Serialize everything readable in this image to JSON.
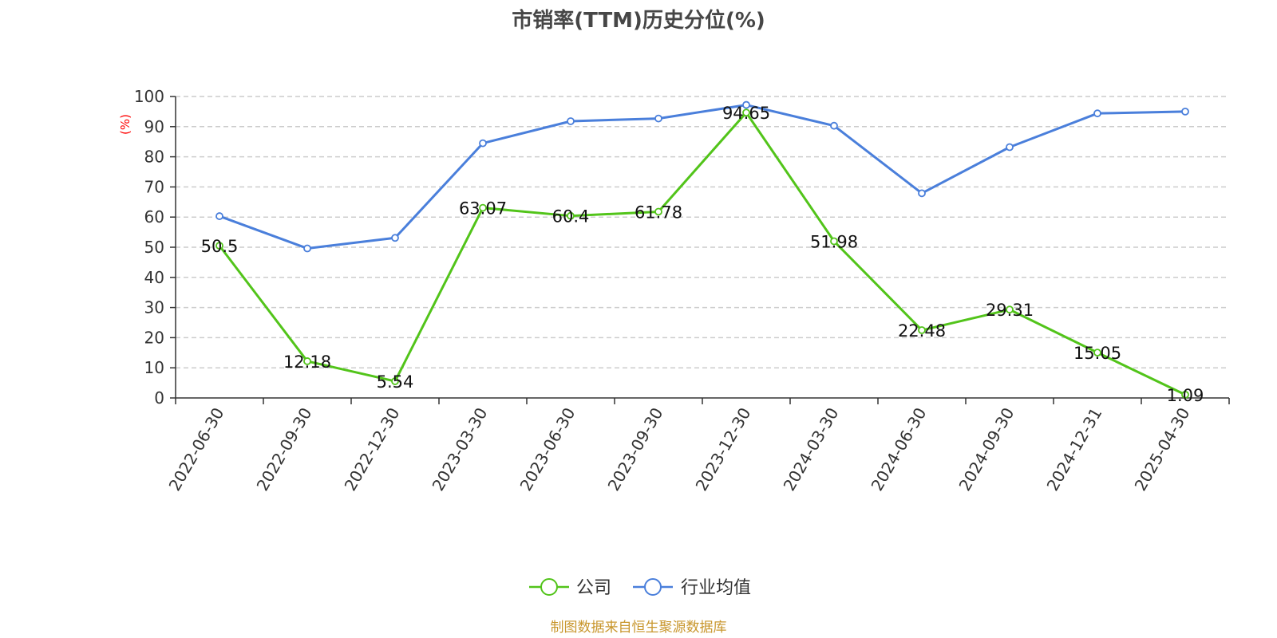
{
  "chart_data": {
    "type": "line",
    "title": "市销率(TTM)历史分位(%)",
    "ylabel": "(%)",
    "ylim": [
      0,
      100
    ],
    "yticks": [
      0,
      10,
      20,
      30,
      40,
      50,
      60,
      70,
      80,
      90,
      100
    ],
    "grid": true,
    "legend_position": "bottom",
    "categories": [
      "2022-06-30",
      "2022-09-30",
      "2022-12-30",
      "2023-03-30",
      "2023-06-30",
      "2023-09-30",
      "2023-12-30",
      "2024-03-30",
      "2024-06-30",
      "2024-09-30",
      "2024-12-31",
      "2025-04-30"
    ],
    "series": [
      {
        "name": "公司",
        "color": "#52c41a",
        "values": [
          50.5,
          12.18,
          5.54,
          63.07,
          60.4,
          61.78,
          94.65,
          51.98,
          22.48,
          29.31,
          15.05,
          1.09
        ],
        "labels": [
          "50.5",
          "12.18",
          "5.54",
          "63.07",
          "60.4",
          "61.78",
          "94.65",
          "51.98",
          "22.48",
          "29.31",
          "15.05",
          "1.09"
        ]
      },
      {
        "name": "行业均值",
        "color": "#4a7fdb",
        "values": [
          60.3,
          49.6,
          53.1,
          84.5,
          91.8,
          92.7,
          97.2,
          90.3,
          67.9,
          83.2,
          94.4,
          95.0
        ]
      }
    ]
  },
  "source_text": "制图数据来自恒生聚源数据库",
  "colors": {
    "title": "#464646",
    "axis": "#333333",
    "grid": "#cccccc",
    "unit_label": "#ff0000",
    "source": "#c8962c"
  }
}
